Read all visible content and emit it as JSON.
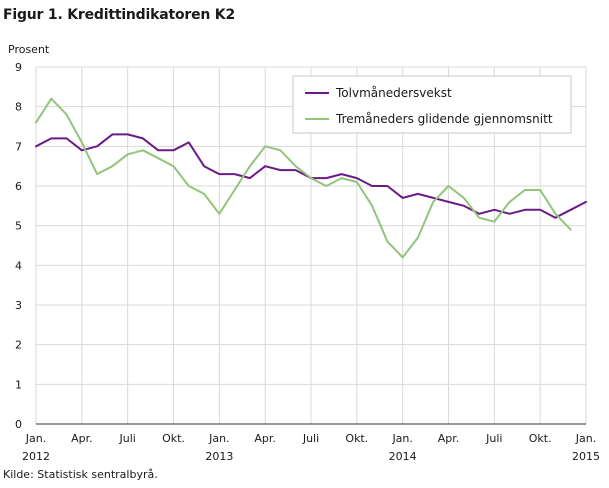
{
  "title": "Figur 1. Kredittindikatoren K2",
  "source": "Kilde: Statistisk sentralbyrå.",
  "colors": {
    "series1": "#6a1b86",
    "series2": "#92c47a",
    "grid": "#d9d9d9",
    "axis": "#333333"
  },
  "chart_data": {
    "type": "line",
    "ylabel": "Prosent",
    "ylim": [
      0,
      9
    ],
    "yticks": [
      0,
      1,
      2,
      3,
      4,
      5,
      6,
      7,
      8,
      9
    ],
    "x": [
      "2012-01",
      "2012-02",
      "2012-03",
      "2012-04",
      "2012-05",
      "2012-06",
      "2012-07",
      "2012-08",
      "2012-09",
      "2012-10",
      "2012-11",
      "2012-12",
      "2013-01",
      "2013-02",
      "2013-03",
      "2013-04",
      "2013-05",
      "2013-06",
      "2013-07",
      "2013-08",
      "2013-09",
      "2013-10",
      "2013-11",
      "2013-12",
      "2014-01",
      "2014-02",
      "2014-03",
      "2014-04",
      "2014-05",
      "2014-06",
      "2014-07",
      "2014-08",
      "2014-09",
      "2014-10",
      "2014-11",
      "2014-12",
      "2015-01"
    ],
    "xtick_labels": [
      {
        "month": "Jan.",
        "year": "2012"
      },
      {
        "month": "Apr.",
        "year": ""
      },
      {
        "month": "Juli",
        "year": ""
      },
      {
        "month": "Okt.",
        "year": ""
      },
      {
        "month": "Jan.",
        "year": "2013"
      },
      {
        "month": "Apr.",
        "year": ""
      },
      {
        "month": "Juli",
        "year": ""
      },
      {
        "month": "Okt.",
        "year": ""
      },
      {
        "month": "Jan.",
        "year": "2014"
      },
      {
        "month": "Apr.",
        "year": ""
      },
      {
        "month": "Juli",
        "year": ""
      },
      {
        "month": "Okt.",
        "year": ""
      },
      {
        "month": "Jan.",
        "year": "2015"
      }
    ],
    "grid": true,
    "legend_position": "top-right",
    "series": [
      {
        "name": "Tolvmånedersvekst",
        "values": [
          7.0,
          7.2,
          7.2,
          6.9,
          7.0,
          7.3,
          7.3,
          7.2,
          6.9,
          6.9,
          7.1,
          6.5,
          6.3,
          6.3,
          6.2,
          6.5,
          6.4,
          6.4,
          6.2,
          6.2,
          6.3,
          6.2,
          6.0,
          6.0,
          5.7,
          5.8,
          5.7,
          5.6,
          5.5,
          5.3,
          5.4,
          5.3,
          5.4,
          5.4,
          5.2,
          5.4,
          5.6
        ]
      },
      {
        "name": "Tremåneders glidende gjennomsnitt",
        "values": [
          7.6,
          8.2,
          7.8,
          7.1,
          6.3,
          6.5,
          6.8,
          6.9,
          6.7,
          6.5,
          6.0,
          5.8,
          5.3,
          5.9,
          6.5,
          7.0,
          6.9,
          6.5,
          6.2,
          6.0,
          6.2,
          6.1,
          5.5,
          4.6,
          4.2,
          4.7,
          5.6,
          6.0,
          5.7,
          5.2,
          5.1,
          5.6,
          5.9,
          5.9,
          5.3,
          4.9,
          null
        ]
      }
    ]
  }
}
